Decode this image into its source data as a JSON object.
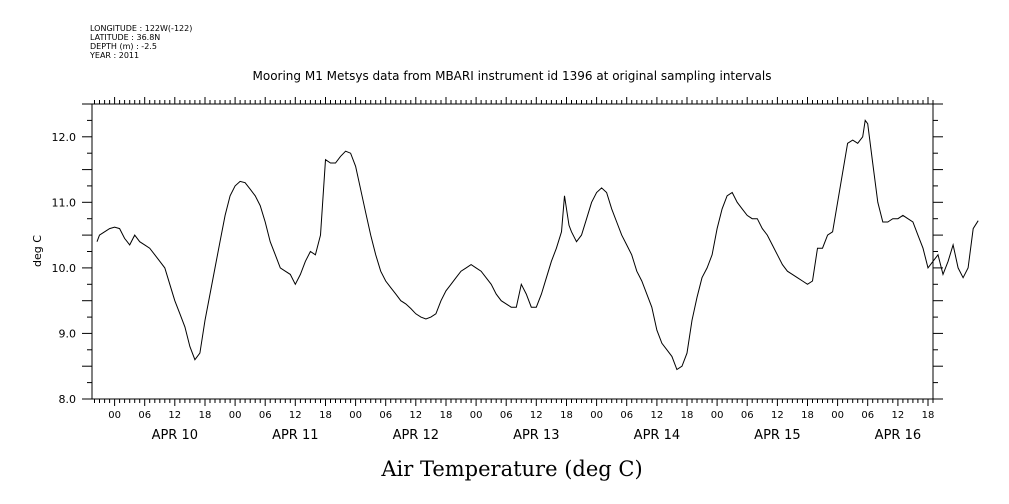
{
  "header": {
    "metadata": [
      "LONGITUDE : 122W(-122)",
      "LATITUDE : 36.8N",
      "DEPTH (m) : -2.5",
      "YEAR : 2011"
    ]
  },
  "chart_data": {
    "type": "line",
    "title": "Mooring M1 Metsys data from MBARI instrument id 1396 at original sampling intervals",
    "xlabel": "Air Temperature (deg C)",
    "ylabel": "deg C",
    "ylim": [
      8.0,
      12.5
    ],
    "yticks": [
      8.0,
      9.0,
      10.0,
      11.0,
      12.0
    ],
    "ytick_labels": [
      "8.0",
      "9.0",
      "10.0",
      "11.0",
      "12.0"
    ],
    "xlim_hours": [
      -4.5,
      163
    ],
    "x_unit": "hours from 2011-04-10 00:00",
    "hour_tick_labels": [
      "00",
      "06",
      "12",
      "18"
    ],
    "day_labels": [
      "APR 10",
      "APR 11",
      "APR 12",
      "APR 13",
      "APR 14",
      "APR 15",
      "APR 16"
    ],
    "grid": false,
    "series": [
      {
        "name": "",
        "color": "#000000",
        "points": [
          [
            -3.5,
            10.4
          ],
          [
            -3,
            10.5
          ],
          [
            -2,
            10.55
          ],
          [
            -1,
            10.6
          ],
          [
            0,
            10.62
          ],
          [
            1,
            10.6
          ],
          [
            2,
            10.45
          ],
          [
            3,
            10.35
          ],
          [
            4,
            10.5
          ],
          [
            5,
            10.4
          ],
          [
            6,
            10.35
          ],
          [
            7,
            10.3
          ],
          [
            8,
            10.2
          ],
          [
            9,
            10.1
          ],
          [
            10,
            10.0
          ],
          [
            11,
            9.75
          ],
          [
            12,
            9.5
          ],
          [
            13,
            9.3
          ],
          [
            14,
            9.1
          ],
          [
            15,
            8.8
          ],
          [
            16,
            8.6
          ],
          [
            17,
            8.7
          ],
          [
            18,
            9.2
          ],
          [
            19,
            9.6
          ],
          [
            20,
            10.0
          ],
          [
            21,
            10.4
          ],
          [
            22,
            10.8
          ],
          [
            23,
            11.1
          ],
          [
            24,
            11.25
          ],
          [
            25,
            11.32
          ],
          [
            26,
            11.3
          ],
          [
            27,
            11.2
          ],
          [
            28,
            11.1
          ],
          [
            29,
            10.95
          ],
          [
            30,
            10.7
          ],
          [
            31,
            10.4
          ],
          [
            32,
            10.2
          ],
          [
            33,
            10.0
          ],
          [
            34,
            9.95
          ],
          [
            35,
            9.9
          ],
          [
            36,
            9.75
          ],
          [
            37,
            9.9
          ],
          [
            38,
            10.1
          ],
          [
            39,
            10.25
          ],
          [
            40,
            10.2
          ],
          [
            41,
            10.5
          ],
          [
            42,
            11.65
          ],
          [
            43,
            11.6
          ],
          [
            44,
            11.6
          ],
          [
            45,
            11.7
          ],
          [
            46,
            11.78
          ],
          [
            47,
            11.75
          ],
          [
            48,
            11.55
          ],
          [
            49,
            11.2
          ],
          [
            50,
            10.85
          ],
          [
            51,
            10.5
          ],
          [
            52,
            10.2
          ],
          [
            53,
            9.95
          ],
          [
            54,
            9.8
          ],
          [
            55,
            9.7
          ],
          [
            56,
            9.6
          ],
          [
            57,
            9.5
          ],
          [
            58,
            9.45
          ],
          [
            59,
            9.38
          ],
          [
            60,
            9.3
          ],
          [
            61,
            9.25
          ],
          [
            62,
            9.22
          ],
          [
            63,
            9.25
          ],
          [
            64,
            9.3
          ],
          [
            65,
            9.5
          ],
          [
            66,
            9.65
          ],
          [
            67,
            9.75
          ],
          [
            68,
            9.85
          ],
          [
            69,
            9.95
          ],
          [
            70,
            10.0
          ],
          [
            71,
            10.05
          ],
          [
            72,
            10.0
          ],
          [
            73,
            9.95
          ],
          [
            74,
            9.85
          ],
          [
            75,
            9.75
          ],
          [
            76,
            9.6
          ],
          [
            77,
            9.5
          ],
          [
            78,
            9.45
          ],
          [
            79,
            9.4
          ],
          [
            80,
            9.4
          ],
          [
            81,
            9.75
          ],
          [
            82,
            9.6
          ],
          [
            83,
            9.4
          ],
          [
            84,
            9.4
          ],
          [
            85,
            9.6
          ],
          [
            86,
            9.85
          ],
          [
            87,
            10.1
          ],
          [
            88,
            10.3
          ],
          [
            89,
            10.55
          ],
          [
            89.6,
            11.1
          ],
          [
            90.5,
            10.65
          ],
          [
            91,
            10.55
          ],
          [
            92,
            10.4
          ],
          [
            93,
            10.5
          ],
          [
            94,
            10.75
          ],
          [
            95,
            11.0
          ],
          [
            96,
            11.15
          ],
          [
            97,
            11.22
          ],
          [
            98,
            11.15
          ],
          [
            99,
            10.9
          ],
          [
            100,
            10.7
          ],
          [
            101,
            10.5
          ],
          [
            102,
            10.35
          ],
          [
            103,
            10.2
          ],
          [
            104,
            9.95
          ],
          [
            105,
            9.8
          ],
          [
            106,
            9.6
          ],
          [
            107,
            9.4
          ],
          [
            108,
            9.05
          ],
          [
            109,
            8.85
          ],
          [
            110,
            8.75
          ],
          [
            111,
            8.65
          ],
          [
            112,
            8.45
          ],
          [
            113,
            8.5
          ],
          [
            114,
            8.7
          ],
          [
            115,
            9.2
          ],
          [
            116,
            9.55
          ],
          [
            117,
            9.85
          ],
          [
            118,
            10.0
          ],
          [
            119,
            10.2
          ],
          [
            120,
            10.6
          ],
          [
            121,
            10.9
          ],
          [
            122,
            11.1
          ],
          [
            123,
            11.15
          ],
          [
            124,
            11.0
          ],
          [
            125,
            10.9
          ],
          [
            126,
            10.8
          ],
          [
            127,
            10.75
          ],
          [
            128,
            10.75
          ],
          [
            129,
            10.6
          ],
          [
            130,
            10.5
          ],
          [
            131,
            10.35
          ],
          [
            132,
            10.2
          ],
          [
            133,
            10.05
          ],
          [
            134,
            9.95
          ],
          [
            135,
            9.9
          ],
          [
            136,
            9.85
          ],
          [
            137,
            9.8
          ],
          [
            138,
            9.75
          ],
          [
            139,
            9.8
          ],
          [
            140,
            10.3
          ],
          [
            141,
            10.3
          ],
          [
            142,
            10.5
          ],
          [
            143,
            10.55
          ],
          [
            144,
            11.0
          ],
          [
            145,
            11.45
          ],
          [
            146,
            11.9
          ],
          [
            147,
            11.95
          ],
          [
            148,
            11.9
          ],
          [
            149,
            12.0
          ],
          [
            149.5,
            12.25
          ],
          [
            150,
            12.2
          ],
          [
            151,
            11.6
          ],
          [
            152,
            11.0
          ],
          [
            153,
            10.7
          ],
          [
            154,
            10.7
          ],
          [
            155,
            10.75
          ],
          [
            156,
            10.75
          ],
          [
            157,
            10.8
          ],
          [
            158,
            10.75
          ],
          [
            159,
            10.7
          ],
          [
            160,
            10.5
          ],
          [
            161,
            10.3
          ],
          [
            162,
            10.0
          ],
          [
            163,
            10.1
          ],
          [
            164,
            10.2
          ],
          [
            165,
            9.9
          ],
          [
            166,
            10.1
          ],
          [
            167,
            10.35
          ],
          [
            168,
            10.0
          ],
          [
            169,
            9.85
          ],
          [
            170,
            10.0
          ],
          [
            171,
            10.6
          ],
          [
            172,
            10.72
          ]
        ]
      }
    ]
  }
}
